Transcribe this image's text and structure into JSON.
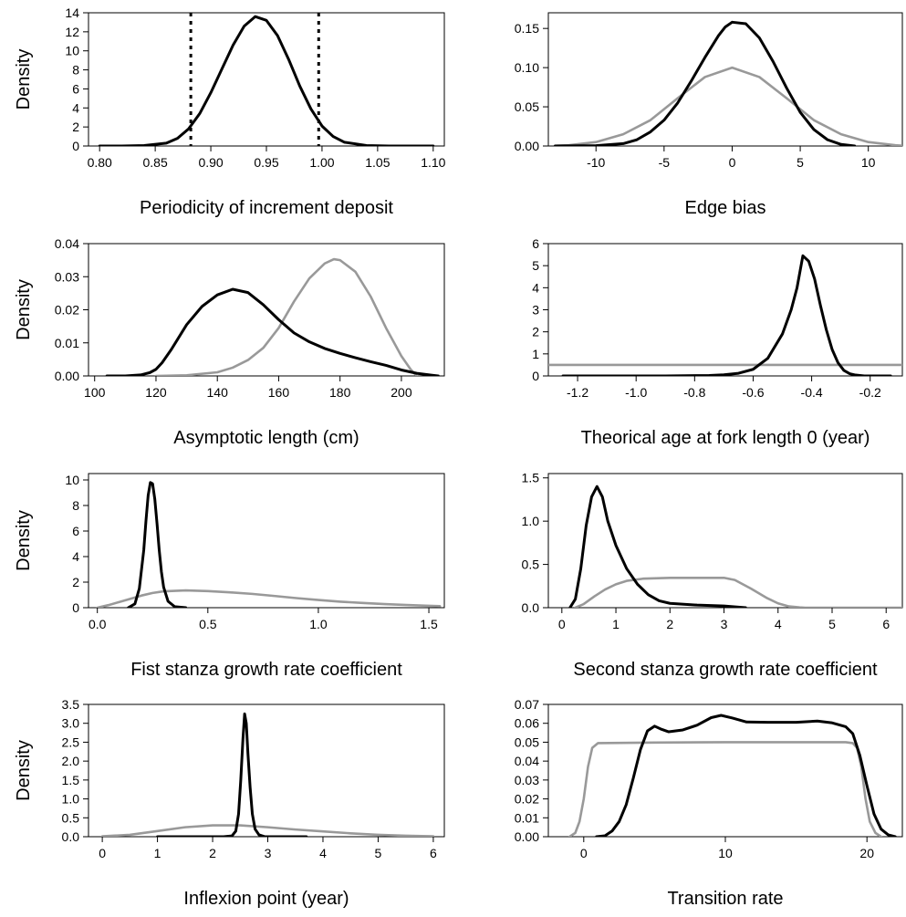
{
  "chart_data": [
    {
      "type": "line",
      "xlabel": "Periodicity of increment deposit",
      "ylabel": "Density",
      "xlim": [
        0.79,
        1.11
      ],
      "ylim": [
        0,
        14
      ],
      "xticks": [
        0.8,
        0.85,
        0.9,
        0.95,
        1.0,
        1.05,
        1.1
      ],
      "xtick_labels": [
        "0.80",
        "0.85",
        "0.90",
        "0.95",
        "1.00",
        "1.05",
        "1.10"
      ],
      "yticks": [
        0,
        2,
        4,
        6,
        8,
        10,
        12,
        14
      ],
      "ytick_labels": [
        "0",
        "2",
        "4",
        "6",
        "8",
        "10",
        "12",
        "14"
      ],
      "vlines": [
        0.882,
        0.997
      ],
      "series": [
        {
          "color": "#000000",
          "x": [
            0.8,
            0.82,
            0.84,
            0.86,
            0.87,
            0.88,
            0.89,
            0.9,
            0.91,
            0.92,
            0.93,
            0.94,
            0.95,
            0.96,
            0.97,
            0.98,
            0.99,
            1.0,
            1.01,
            1.02,
            1.04,
            1.06,
            1.1
          ],
          "y": [
            0,
            0,
            0.05,
            0.3,
            0.8,
            1.8,
            3.4,
            5.6,
            8.1,
            10.6,
            12.6,
            13.6,
            13.2,
            11.6,
            9.1,
            6.3,
            3.9,
            2.1,
            1.0,
            0.4,
            0.05,
            0,
            0
          ]
        },
        {
          "color": "#999999",
          "x": [],
          "y": []
        }
      ]
    },
    {
      "type": "line",
      "xlabel": "Edge bias",
      "ylabel": "",
      "xlim": [
        -13.5,
        12.5
      ],
      "ylim": [
        0,
        0.17
      ],
      "xticks": [
        -10,
        -5,
        0,
        5,
        10
      ],
      "xtick_labels": [
        "-10",
        "-5",
        "0",
        "5",
        "10"
      ],
      "yticks": [
        0,
        0.05,
        0.1,
        0.15
      ],
      "ytick_labels": [
        "0.00",
        "0.05",
        "0.10",
        "0.15"
      ],
      "vlines": [],
      "series": [
        {
          "color": "#000000",
          "x": [
            -13,
            -10,
            -8,
            -7,
            -6,
            -5,
            -4,
            -3,
            -2,
            -1,
            -0.5,
            0,
            1,
            2,
            3,
            4,
            5,
            6,
            7,
            8,
            9
          ],
          "y": [
            0,
            0.0004,
            0.003,
            0.008,
            0.018,
            0.033,
            0.055,
            0.083,
            0.113,
            0.141,
            0.152,
            0.158,
            0.156,
            0.138,
            0.108,
            0.074,
            0.043,
            0.021,
            0.008,
            0.002,
            0
          ]
        },
        {
          "color": "#999999",
          "x": [
            -13,
            -12,
            -10,
            -8,
            -6,
            -4,
            -2,
            0,
            2,
            4,
            6,
            8,
            10,
            12,
            12.5
          ],
          "y": [
            0.0004,
            0.001,
            0.005,
            0.015,
            0.033,
            0.061,
            0.088,
            0.1,
            0.088,
            0.061,
            0.033,
            0.015,
            0.005,
            0.001,
            0.0004
          ]
        }
      ]
    },
    {
      "type": "line",
      "xlabel": "Asymptotic length (cm)",
      "ylabel": "Density",
      "xlim": [
        98,
        214
      ],
      "ylim": [
        0,
        0.04
      ],
      "xticks": [
        100,
        120,
        140,
        160,
        180,
        200
      ],
      "xtick_labels": [
        "100",
        "120",
        "140",
        "160",
        "180",
        "200"
      ],
      "yticks": [
        0,
        0.01,
        0.02,
        0.03,
        0.04
      ],
      "ytick_labels": [
        "0.00",
        "0.01",
        "0.02",
        "0.03",
        "0.04"
      ],
      "vlines": [],
      "series": [
        {
          "color": "#000000",
          "x": [
            104,
            110,
            115,
            118,
            120,
            122,
            125,
            130,
            135,
            140,
            145,
            150,
            155,
            160,
            165,
            170,
            175,
            180,
            185,
            190,
            195,
            200,
            205,
            210,
            212
          ],
          "y": [
            0,
            0,
            0.0003,
            0.001,
            0.002,
            0.004,
            0.008,
            0.0155,
            0.021,
            0.0245,
            0.0262,
            0.0252,
            0.0215,
            0.017,
            0.013,
            0.0103,
            0.0083,
            0.0068,
            0.0055,
            0.0043,
            0.0032,
            0.0018,
            0.0008,
            0.0002,
            0
          ]
        },
        {
          "color": "#999999",
          "x": [
            120,
            130,
            140,
            145,
            150,
            155,
            160,
            165,
            170,
            175,
            178,
            180,
            185,
            190,
            195,
            200,
            203,
            205
          ],
          "y": [
            0,
            0.0002,
            0.0011,
            0.0025,
            0.0048,
            0.0085,
            0.0145,
            0.0225,
            0.0295,
            0.034,
            0.0353,
            0.035,
            0.0315,
            0.024,
            0.0145,
            0.006,
            0.002,
            0
          ]
        }
      ]
    },
    {
      "type": "line",
      "xlabel": "Theorical age at fork length 0 (year)",
      "ylabel": "",
      "xlim": [
        -1.3,
        -0.09
      ],
      "ylim": [
        0,
        6
      ],
      "xticks": [
        -1.2,
        -1.0,
        -0.8,
        -0.6,
        -0.4,
        -0.2
      ],
      "xtick_labels": [
        "-1.2",
        "-1.0",
        "-0.8",
        "-0.6",
        "-0.4",
        "-0.2"
      ],
      "yticks": [
        0,
        1,
        2,
        3,
        4,
        5,
        6
      ],
      "ytick_labels": [
        "0",
        "1",
        "2",
        "3",
        "4",
        "5",
        "6"
      ],
      "vlines": [],
      "series": [
        {
          "color": "#000000",
          "x": [
            -1.25,
            -0.9,
            -0.75,
            -0.7,
            -0.65,
            -0.6,
            -0.55,
            -0.5,
            -0.47,
            -0.45,
            -0.43,
            -0.41,
            -0.39,
            -0.37,
            -0.35,
            -0.33,
            -0.31,
            -0.29,
            -0.27,
            -0.25,
            -0.22,
            -0.13
          ],
          "y": [
            0,
            0,
            0.02,
            0.05,
            0.12,
            0.3,
            0.8,
            1.9,
            3.0,
            4.0,
            5.45,
            5.2,
            4.4,
            3.2,
            2.1,
            1.2,
            0.6,
            0.25,
            0.1,
            0.04,
            0,
            0
          ]
        },
        {
          "color": "#999999",
          "x": [
            -1.3,
            -0.09
          ],
          "y": [
            0.5,
            0.5
          ]
        }
      ]
    },
    {
      "type": "line",
      "xlabel": "Fist stanza growth rate coefficient",
      "ylabel": "Density",
      "xlim": [
        -0.04,
        1.57
      ],
      "ylim": [
        0,
        10.5
      ],
      "xticks": [
        0,
        0.5,
        1.0,
        1.5
      ],
      "xtick_labels": [
        "0.0",
        "0.5",
        "1.0",
        "1.5"
      ],
      "yticks": [
        0,
        2,
        4,
        6,
        8,
        10
      ],
      "ytick_labels": [
        "0",
        "2",
        "4",
        "6",
        "8",
        "10"
      ],
      "vlines": [],
      "series": [
        {
          "color": "#000000",
          "x": [
            0.14,
            0.17,
            0.19,
            0.21,
            0.22,
            0.23,
            0.24,
            0.25,
            0.26,
            0.27,
            0.28,
            0.29,
            0.3,
            0.32,
            0.35,
            0.4
          ],
          "y": [
            0,
            0.3,
            1.5,
            4.5,
            6.8,
            8.8,
            9.8,
            9.7,
            8.5,
            6.6,
            4.5,
            2.8,
            1.6,
            0.5,
            0.08,
            0
          ]
        },
        {
          "color": "#999999",
          "x": [
            0,
            0.05,
            0.1,
            0.15,
            0.2,
            0.25,
            0.3,
            0.4,
            0.5,
            0.6,
            0.7,
            0.8,
            0.9,
            1.0,
            1.1,
            1.2,
            1.3,
            1.4,
            1.5,
            1.55
          ],
          "y": [
            0,
            0.2,
            0.45,
            0.7,
            0.95,
            1.15,
            1.28,
            1.35,
            1.3,
            1.2,
            1.08,
            0.92,
            0.75,
            0.6,
            0.47,
            0.37,
            0.28,
            0.21,
            0.15,
            0.12
          ]
        }
      ]
    },
    {
      "type": "line",
      "xlabel": "Second stanza growth rate coefficient",
      "ylabel": "",
      "xlim": [
        -0.25,
        6.3
      ],
      "ylim": [
        0,
        1.55
      ],
      "xticks": [
        0,
        1,
        2,
        3,
        4,
        5,
        6
      ],
      "xtick_labels": [
        "0",
        "1",
        "2",
        "3",
        "4",
        "5",
        "6"
      ],
      "yticks": [
        0,
        0.5,
        1.0,
        1.5
      ],
      "ytick_labels": [
        "0.0",
        "0.5",
        "1.0",
        "1.5"
      ],
      "vlines": [],
      "series": [
        {
          "color": "#000000",
          "x": [
            0.15,
            0.25,
            0.35,
            0.45,
            0.55,
            0.65,
            0.75,
            0.85,
            1.0,
            1.2,
            1.4,
            1.6,
            1.8,
            2.0,
            2.5,
            3.0,
            3.4
          ],
          "y": [
            0,
            0.1,
            0.45,
            0.95,
            1.28,
            1.4,
            1.28,
            1.0,
            0.72,
            0.45,
            0.27,
            0.15,
            0.08,
            0.05,
            0.03,
            0.02,
            0
          ]
        },
        {
          "color": "#999999",
          "x": [
            0.25,
            0.4,
            0.6,
            0.8,
            1.0,
            1.2,
            1.5,
            2.0,
            2.5,
            3.0,
            3.2,
            3.5,
            3.8,
            4.0,
            4.2,
            4.4,
            4.5,
            6.3
          ],
          "y": [
            0,
            0.04,
            0.13,
            0.21,
            0.27,
            0.31,
            0.335,
            0.345,
            0.345,
            0.345,
            0.32,
            0.22,
            0.11,
            0.05,
            0.015,
            0.003,
            0,
            0
          ]
        }
      ]
    },
    {
      "type": "line",
      "xlabel": "Inflexion point (year)",
      "ylabel": "Density",
      "xlim": [
        -0.25,
        6.2
      ],
      "ylim": [
        0,
        3.5
      ],
      "xticks": [
        0,
        1,
        2,
        3,
        4,
        5,
        6
      ],
      "xtick_labels": [
        "0",
        "1",
        "2",
        "3",
        "4",
        "5",
        "6"
      ],
      "yticks": [
        0,
        0.5,
        1.0,
        1.5,
        2.0,
        2.5,
        3.0,
        3.5
      ],
      "ytick_labels": [
        "0.0",
        "0.5",
        "1.0",
        "1.5",
        "2.0",
        "2.5",
        "3.0",
        "3.5"
      ],
      "vlines": [],
      "series": [
        {
          "color": "#000000",
          "x": [
            1.0,
            2.2,
            2.35,
            2.42,
            2.47,
            2.51,
            2.55,
            2.58,
            2.61,
            2.64,
            2.68,
            2.72,
            2.77,
            2.84,
            2.95,
            3.7
          ],
          "y": [
            0,
            0,
            0.02,
            0.15,
            0.6,
            1.5,
            2.6,
            3.25,
            3.0,
            2.2,
            1.3,
            0.6,
            0.2,
            0.05,
            0,
            0
          ]
        },
        {
          "color": "#999999",
          "x": [
            0,
            0.5,
            1.0,
            1.5,
            2.0,
            2.5,
            3.0,
            3.5,
            4.0,
            4.5,
            5.0,
            5.5,
            6.0
          ],
          "y": [
            0.01,
            0.05,
            0.15,
            0.25,
            0.3,
            0.3,
            0.25,
            0.19,
            0.14,
            0.09,
            0.05,
            0.025,
            0.01
          ]
        }
      ]
    },
    {
      "type": "line",
      "xlabel": "Transition rate",
      "ylabel": "",
      "xlim": [
        -2.5,
        22.5
      ],
      "ylim": [
        0,
        0.07
      ],
      "xticks": [
        0,
        10,
        20
      ],
      "xtick_labels": [
        "0",
        "10",
        "20"
      ],
      "yticks": [
        0,
        0.01,
        0.02,
        0.03,
        0.04,
        0.05,
        0.06,
        0.07
      ],
      "ytick_labels": [
        "0.00",
        "0.01",
        "0.02",
        "0.03",
        "0.04",
        "0.05",
        "0.06",
        "0.07"
      ],
      "vlines": [],
      "series": [
        {
          "color": "#000000",
          "x": [
            0.9,
            1.5,
            2.0,
            2.5,
            3.0,
            3.5,
            4.0,
            4.5,
            5.0,
            5.5,
            6.0,
            7.0,
            8.0,
            9.0,
            9.7,
            10.5,
            11.5,
            13.0,
            15.0,
            16.5,
            17.5,
            18.5,
            19.0,
            19.5,
            20.0,
            20.5,
            21.0,
            21.5,
            22.0
          ],
          "y": [
            0,
            0.0005,
            0.003,
            0.008,
            0.017,
            0.031,
            0.046,
            0.056,
            0.0585,
            0.0568,
            0.0555,
            0.0565,
            0.059,
            0.063,
            0.0642,
            0.0628,
            0.0607,
            0.0605,
            0.0605,
            0.0612,
            0.0603,
            0.0582,
            0.0545,
            0.043,
            0.027,
            0.012,
            0.004,
            0.001,
            0
          ]
        },
        {
          "color": "#999999",
          "x": [
            -1.0,
            -0.6,
            -0.3,
            0,
            0.3,
            0.6,
            1.0,
            5,
            10,
            15,
            18.5,
            19.0,
            19.3,
            19.6,
            19.9,
            20.2,
            20.6,
            21.0
          ],
          "y": [
            0,
            0.002,
            0.008,
            0.02,
            0.037,
            0.047,
            0.0495,
            0.0498,
            0.05,
            0.05,
            0.05,
            0.0495,
            0.047,
            0.037,
            0.02,
            0.008,
            0.002,
            0
          ]
        }
      ]
    }
  ]
}
